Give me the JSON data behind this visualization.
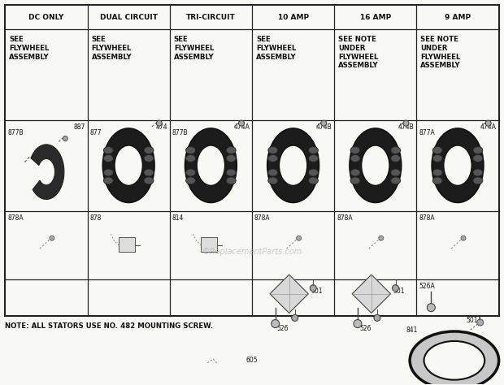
{
  "background_color": "#f8f8f5",
  "grid_color": "#222222",
  "columns": [
    "DC ONLY",
    "DUAL CIRCUIT",
    "TRI-CIRCUIT",
    "10 AMP",
    "16 AMP",
    "9 AMP"
  ],
  "header_body_texts": [
    "SEE\nFLYWHEEL\nASSEMBLY",
    "SEE\nFLYWHEEL\nASSEMBLY",
    "SEE\nFLYWHEEL\nASSEMBLY",
    "SEE\nFLYWHEEL\nASSEMBLY",
    "SEE NOTE\nUNDER\nFLYWHEEL\nASSEMBLY",
    "SEE NOTE\nUNDER\nFLYWHEEL\nASSEMBLY"
  ],
  "stator_top_labels": [
    "887",
    "474",
    "474A",
    "474B",
    "474B",
    "474A"
  ],
  "stator_left_labels": [
    "877B",
    "877",
    "877B",
    "",
    "",
    "877A"
  ],
  "conn_labels": [
    "878A",
    "878",
    "814",
    "878A",
    "878A",
    "878A"
  ],
  "note_text": "NOTE: ALL STATORS USE NO. 482 MOUNTING SCREW.",
  "watermark": "©ReplacementParts.com"
}
